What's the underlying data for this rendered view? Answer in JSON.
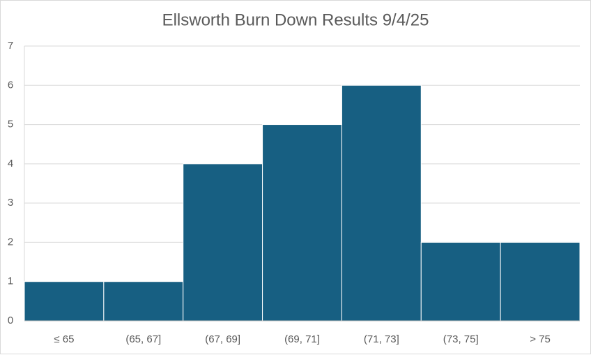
{
  "chart_data": {
    "type": "bar",
    "title": "Ellsworth Burn Down Results 9/4/25",
    "categories": [
      "≤ 65",
      "(65, 67]",
      "(67, 69]",
      "(69, 71]",
      "(71, 73]",
      "(73, 75]",
      "> 75"
    ],
    "values": [
      1,
      1,
      4,
      5,
      6,
      2,
      2
    ],
    "color": "#175f82",
    "ylim": [
      0,
      7
    ],
    "yticks": [
      0,
      1,
      2,
      3,
      4,
      5,
      6,
      7
    ],
    "grid": true
  }
}
